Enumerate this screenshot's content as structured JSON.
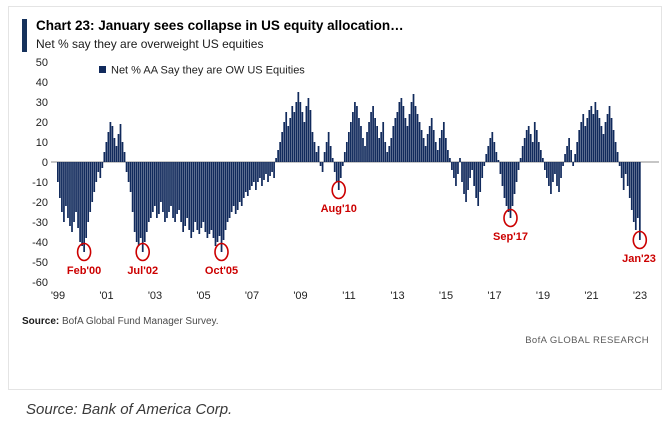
{
  "header": {
    "title": "Chart 23: January sees collapse in US equity allocation…",
    "subtitle": "Net % say they are overweight US equities"
  },
  "footer": {
    "source_label": "Source:",
    "source_text": "BofA Global Fund Manager Survey.",
    "brand": "BofA GLOBAL RESEARCH"
  },
  "caption": "Source: Bank of America Corp.",
  "chart_data": {
    "type": "bar",
    "title": "Chart 23: January sees collapse in US equity allocation…",
    "legend": "Net % AA Say they are OW US Equities",
    "frequency": "monthly",
    "start_year": 1999,
    "ylim": [
      -60,
      50
    ],
    "y_ticks": [
      50,
      40,
      30,
      20,
      10,
      0,
      -10,
      -20,
      -30,
      -40,
      -50,
      -60
    ],
    "x_ticks": [
      {
        "label": "'99",
        "year": 1999
      },
      {
        "label": "'01",
        "year": 2001
      },
      {
        "label": "'03",
        "year": 2003
      },
      {
        "label": "'05",
        "year": 2005
      },
      {
        "label": "'07",
        "year": 2007
      },
      {
        "label": "'09",
        "year": 2009
      },
      {
        "label": "'11",
        "year": 2011
      },
      {
        "label": "'13",
        "year": 2013
      },
      {
        "label": "'15",
        "year": 2015
      },
      {
        "label": "'17",
        "year": 2017
      },
      {
        "label": "'19",
        "year": 2019
      },
      {
        "label": "'21",
        "year": 2021
      },
      {
        "label": "'23",
        "year": 2023
      }
    ],
    "bar_color": "#112a5c",
    "accent_color": "#cc0000",
    "zero_line_color": "#8c8c8c",
    "values": [
      -10,
      -18,
      -25,
      -30,
      -22,
      -28,
      -32,
      -35,
      -30,
      -25,
      -33,
      -40,
      -42,
      -45,
      -38,
      -30,
      -25,
      -20,
      -15,
      -10,
      -5,
      -8,
      -3,
      5,
      10,
      15,
      20,
      18,
      12,
      8,
      14,
      19,
      10,
      5,
      -5,
      -10,
      -15,
      -25,
      -35,
      -40,
      -42,
      -38,
      -45,
      -40,
      -35,
      -30,
      -28,
      -25,
      -22,
      -28,
      -26,
      -20,
      -25,
      -30,
      -28,
      -25,
      -22,
      -28,
      -30,
      -26,
      -24,
      -30,
      -35,
      -32,
      -28,
      -34,
      -38,
      -35,
      -30,
      -34,
      -36,
      -33,
      -30,
      -35,
      -38,
      -36,
      -34,
      -38,
      -42,
      -40,
      -37,
      -45,
      -39,
      -34,
      -30,
      -28,
      -25,
      -22,
      -26,
      -24,
      -20,
      -22,
      -18,
      -15,
      -17,
      -14,
      -12,
      -10,
      -14,
      -10,
      -8,
      -12,
      -9,
      -6,
      -10,
      -7,
      -5,
      -8,
      2,
      6,
      10,
      15,
      20,
      25,
      18,
      22,
      28,
      25,
      30,
      35,
      30,
      25,
      20,
      28,
      32,
      26,
      15,
      10,
      5,
      8,
      -2,
      -5,
      5,
      10,
      15,
      8,
      2,
      -5,
      -10,
      -14,
      -8,
      -2,
      5,
      10,
      15,
      20,
      25,
      30,
      28,
      22,
      18,
      12,
      8,
      15,
      20,
      25,
      28,
      22,
      18,
      12,
      15,
      20,
      10,
      5,
      8,
      12,
      18,
      22,
      25,
      30,
      32,
      28,
      22,
      18,
      24,
      30,
      34,
      28,
      24,
      20,
      16,
      12,
      8,
      14,
      18,
      22,
      16,
      10,
      6,
      12,
      16,
      20,
      12,
      6,
      2,
      -4,
      -8,
      -12,
      -6,
      2,
      -10,
      -16,
      -20,
      -14,
      -8,
      -4,
      -12,
      -18,
      -22,
      -15,
      -8,
      -2,
      4,
      8,
      12,
      15,
      10,
      5,
      1,
      -6,
      -12,
      -18,
      -22,
      -25,
      -28,
      -22,
      -16,
      -10,
      -4,
      2,
      8,
      12,
      16,
      18,
      14,
      10,
      20,
      16,
      10,
      6,
      2,
      -4,
      -8,
      -12,
      -16,
      -10,
      -6,
      -12,
      -15,
      -8,
      -2,
      4,
      8,
      12,
      6,
      -2,
      4,
      10,
      16,
      20,
      24,
      18,
      22,
      26,
      28,
      24,
      30,
      26,
      22,
      18,
      14,
      20,
      24,
      28,
      22,
      16,
      10,
      5,
      -2,
      -8,
      -14,
      -6,
      -12,
      -18,
      -24,
      -30,
      -34,
      -28,
      -39
    ],
    "annotations": [
      {
        "label": "Feb'00",
        "year": 2000,
        "month": 2,
        "value": -45
      },
      {
        "label": "Jul'02",
        "year": 2002,
        "month": 7,
        "value": -45
      },
      {
        "label": "Oct'05",
        "year": 2005,
        "month": 10,
        "value": -45
      },
      {
        "label": "Aug'10",
        "year": 2010,
        "month": 8,
        "value": -14
      },
      {
        "label": "Sep'17",
        "year": 2017,
        "month": 9,
        "value": -28
      },
      {
        "label": "Jan'23",
        "year": 2023,
        "month": 1,
        "value": -39
      }
    ]
  }
}
